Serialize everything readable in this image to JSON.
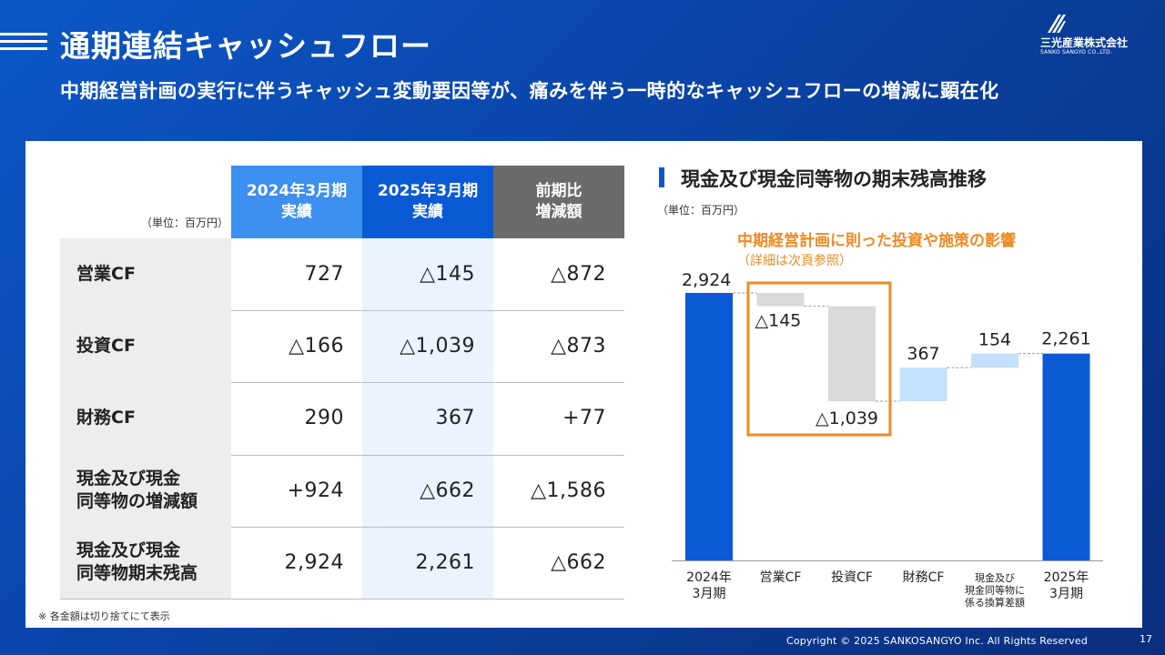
{
  "header": {
    "title": "通期連結キャッシュフロー",
    "subtitle": "中期経営計画の実行に伴うキャッシュ変動要因等が、痛みを伴う一時的なキャッシュフローの増減に顕在化"
  },
  "logo": {
    "name": "三光産業株式会社",
    "name_en": "SANKO SANGYO CO.,LTD."
  },
  "table": {
    "unit": "（単位：百万円）",
    "columns": [
      {
        "line1": "2024年3月期",
        "line2": "実績",
        "color": "#3d8ff0"
      },
      {
        "line1": "2025年3月期",
        "line2": "実績",
        "color": "#0a5ad6"
      },
      {
        "line1": "前期比",
        "line2": "増減額",
        "color": "#6b6b6b"
      }
    ],
    "rows": [
      {
        "label1": "営業CF",
        "label2": "",
        "values": [
          "727",
          "△145",
          "△872"
        ]
      },
      {
        "label1": "投資CF",
        "label2": "",
        "values": [
          "△166",
          "△1,039",
          "△873"
        ]
      },
      {
        "label1": "財務CF",
        "label2": "",
        "values": [
          "290",
          "367",
          "+77"
        ]
      },
      {
        "label1": "現金及び現金",
        "label2": "同等物の増減額",
        "values": [
          "+924",
          "△662",
          "△1,586"
        ]
      },
      {
        "label1": "現金及び現金",
        "label2": "同等物期末残高",
        "values": [
          "2,924",
          "2,261",
          "△662"
        ]
      }
    ],
    "note": "※ 各金額は切り捨てにて表示"
  },
  "chart_panel": {
    "title": "現金及び現金同等物の期末残高推移",
    "unit": "（単位：百万円）",
    "annotation": "中期経営計画に則った投資や施策の影響",
    "annotation_sub": "（詳細は次頁参照）"
  },
  "chart_data": {
    "type": "bar",
    "subtype": "waterfall",
    "categories": [
      [
        "2024年",
        "3月期"
      ],
      [
        "営業CF"
      ],
      [
        "投資CF"
      ],
      [
        "財務CF"
      ],
      [
        "現金及び",
        "現金同等物に",
        "係る換算差額"
      ],
      [
        "2025年",
        "3月期"
      ]
    ],
    "values": [
      2924,
      -145,
      -1039,
      367,
      154,
      2261
    ],
    "kinds": [
      "total",
      "delta",
      "delta",
      "delta",
      "delta",
      "total"
    ],
    "data_labels": [
      "2,924",
      "△145",
      "△1,039",
      "367",
      "154",
      "2,261"
    ],
    "colors": {
      "total": "#0a5ad6",
      "negative": "#d9d9d9",
      "positive": "#c3e0ff",
      "highlight_box": "#f08a24"
    },
    "ylim": [
      0,
      2924
    ]
  },
  "footer": {
    "copyright": "Copyright © 2025  SANKOSANGYO Inc. All Rights Reserved",
    "page": "17"
  }
}
